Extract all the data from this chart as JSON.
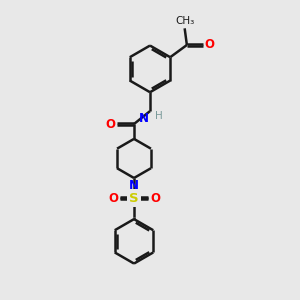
{
  "background_color": "#e8e8e8",
  "bond_color": "#1a1a1a",
  "red": "#ff0000",
  "blue": "#0000ff",
  "yellow": "#cccc00",
  "gray": "#7a9a9a",
  "lw": 1.8,
  "lw_thin": 1.4,
  "xlim": [
    0,
    10
  ],
  "ylim": [
    0,
    13.5
  ]
}
